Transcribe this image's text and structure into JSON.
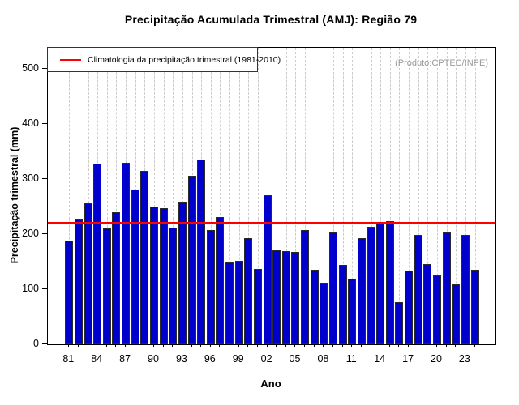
{
  "title": "Precipitação Acumulada Trimestral (AMJ): Região 79",
  "watermark": "(Produto:CPTEC/INPE)",
  "legend": {
    "label": "Climatologia da precipitação trimestral (1981-2010)",
    "line_color": "#ff0000"
  },
  "colors": {
    "bar_fill": "#0000cd",
    "bar_border": "#2a2a2a",
    "climatology_line": "#ff0000",
    "grid": "#cccccc",
    "watermark_text": "#9a9a9a"
  },
  "chart_data": {
    "type": "bar",
    "title": "Precipitação Acumulada Trimestral (AMJ): Região 79",
    "xlabel": "Ano",
    "ylabel": "Precipitação trimestral (mm)",
    "ylim": [
      0,
      538
    ],
    "yticks": [
      0,
      100,
      200,
      300,
      400,
      500
    ],
    "grid": "vertical-dashed",
    "legend_position": "top-left",
    "climatology_line_value": 220,
    "categories": [
      1981,
      1982,
      1983,
      1984,
      1985,
      1986,
      1987,
      1988,
      1989,
      1990,
      1991,
      1992,
      1993,
      1994,
      1995,
      1996,
      1997,
      1998,
      1999,
      2000,
      2001,
      2002,
      2003,
      2004,
      2005,
      2006,
      2007,
      2008,
      2009,
      2010,
      2011,
      2012,
      2013,
      2014,
      2015,
      2016,
      2017,
      2018,
      2019,
      2020,
      2021,
      2022,
      2023,
      2024
    ],
    "values": [
      188,
      228,
      256,
      328,
      210,
      240,
      330,
      281,
      315,
      250,
      247,
      212,
      259,
      306,
      336,
      208,
      231,
      148,
      152,
      192,
      137,
      270,
      170,
      169,
      168,
      207,
      136,
      110,
      203,
      144,
      119,
      193,
      213,
      222,
      224,
      76,
      134,
      199,
      145,
      125,
      203,
      109,
      199,
      136
    ],
    "x_tick_labels": [
      "81",
      "84",
      "87",
      "90",
      "93",
      "96",
      "99",
      "02",
      "05",
      "08",
      "11",
      "14",
      "17",
      "20",
      "23"
    ],
    "x_tick_label_step": 3
  }
}
